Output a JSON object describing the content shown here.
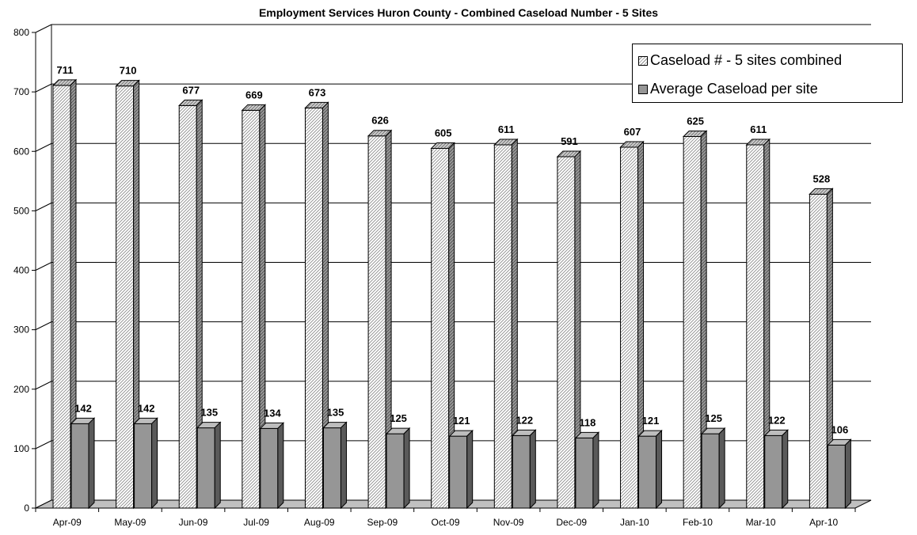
{
  "chart_data": {
    "type": "bar",
    "title": "Employment Services Huron County - Combined Caseload Number - 5 Sites",
    "categories": [
      "Apr-09",
      "May-09",
      "Jun-09",
      "Jul-09",
      "Aug-09",
      "Sep-09",
      "Oct-09",
      "Nov-09",
      "Dec-09",
      "Jan-10",
      "Feb-10",
      "Mar-10",
      "Apr-10"
    ],
    "series": [
      {
        "name": "Caseload # - 5 sites combined",
        "values": [
          711,
          710,
          677,
          669,
          673,
          626,
          605,
          611,
          591,
          607,
          625,
          611,
          528
        ],
        "color": "#ffffff",
        "pattern": "hatched"
      },
      {
        "name": "Average Caseload per site",
        "values": [
          142,
          142,
          135,
          134,
          135,
          125,
          121,
          122,
          118,
          121,
          125,
          122,
          106
        ],
        "color": "#969696",
        "pattern": "solid"
      }
    ],
    "ylim": [
      0,
      800
    ],
    "yticks": [
      0,
      100,
      200,
      300,
      400,
      500,
      600,
      700,
      800
    ],
    "grid": true,
    "legend_position": "top-right",
    "style": "3d-clustered-column"
  }
}
